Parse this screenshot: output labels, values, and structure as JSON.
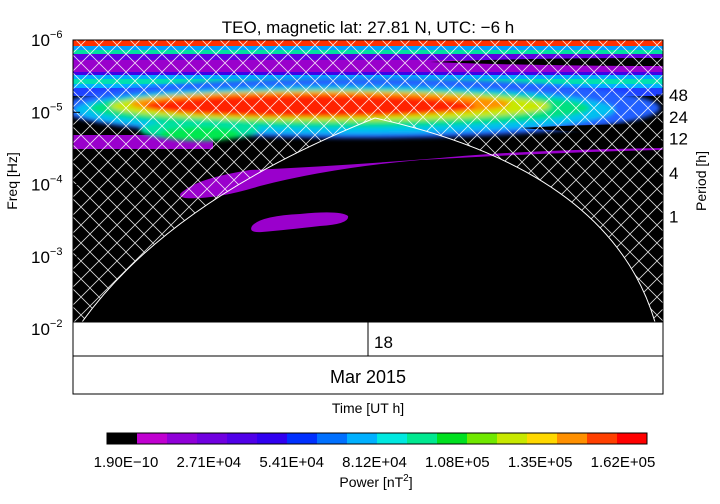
{
  "chart_data": {
    "type": "heatmap",
    "title": "TEO, magnetic lat:   27.81 N, UTC:  −6 h",
    "xlabel": "Time [UT h]",
    "ylabel": "Freq [Hz]",
    "y2label": "Period [h]",
    "freq_range_exp": [
      -6,
      -2.1
    ],
    "freq_axis": {
      "scale": "log",
      "ticks": [
        {
          "exp": -6,
          "label": "10−6"
        },
        {
          "exp": -5,
          "label": "10−5"
        },
        {
          "exp": -4,
          "label": "10−4"
        },
        {
          "exp": -3,
          "label": "10−3"
        },
        {
          "exp": -2,
          "label": "10−2"
        }
      ]
    },
    "period_axis": {
      "ticks": [
        {
          "period_h": 48,
          "label": "48"
        },
        {
          "period_h": 24,
          "label": "24"
        },
        {
          "period_h": 12,
          "label": "12"
        },
        {
          "period_h": 4,
          "label": "4"
        },
        {
          "period_h": 1,
          "label": "1"
        }
      ]
    },
    "time_axis": {
      "hour_label": "18",
      "period_label": "Mar 2015"
    },
    "cone_of_influence": "hatched",
    "colorbar": {
      "title": "Power [nT",
      "title_sup": "2",
      "title_end": "]",
      "tick_labels": [
        "1.90E−10",
        "2.71E+04",
        "5.41E+04",
        "8.12E+04",
        "1.08E+05",
        "1.35E+05",
        "1.62E+05"
      ],
      "colors": [
        "#000000",
        "#c000d0",
        "#9000d8",
        "#7000e0",
        "#5000e8",
        "#3000f0",
        "#0030ff",
        "#0070ff",
        "#00b0ff",
        "#00e8e0",
        "#00e890",
        "#00e020",
        "#70e800",
        "#c8e800",
        "#ffd800",
        "#ff9000",
        "#ff4000",
        "#ff0000"
      ]
    }
  }
}
